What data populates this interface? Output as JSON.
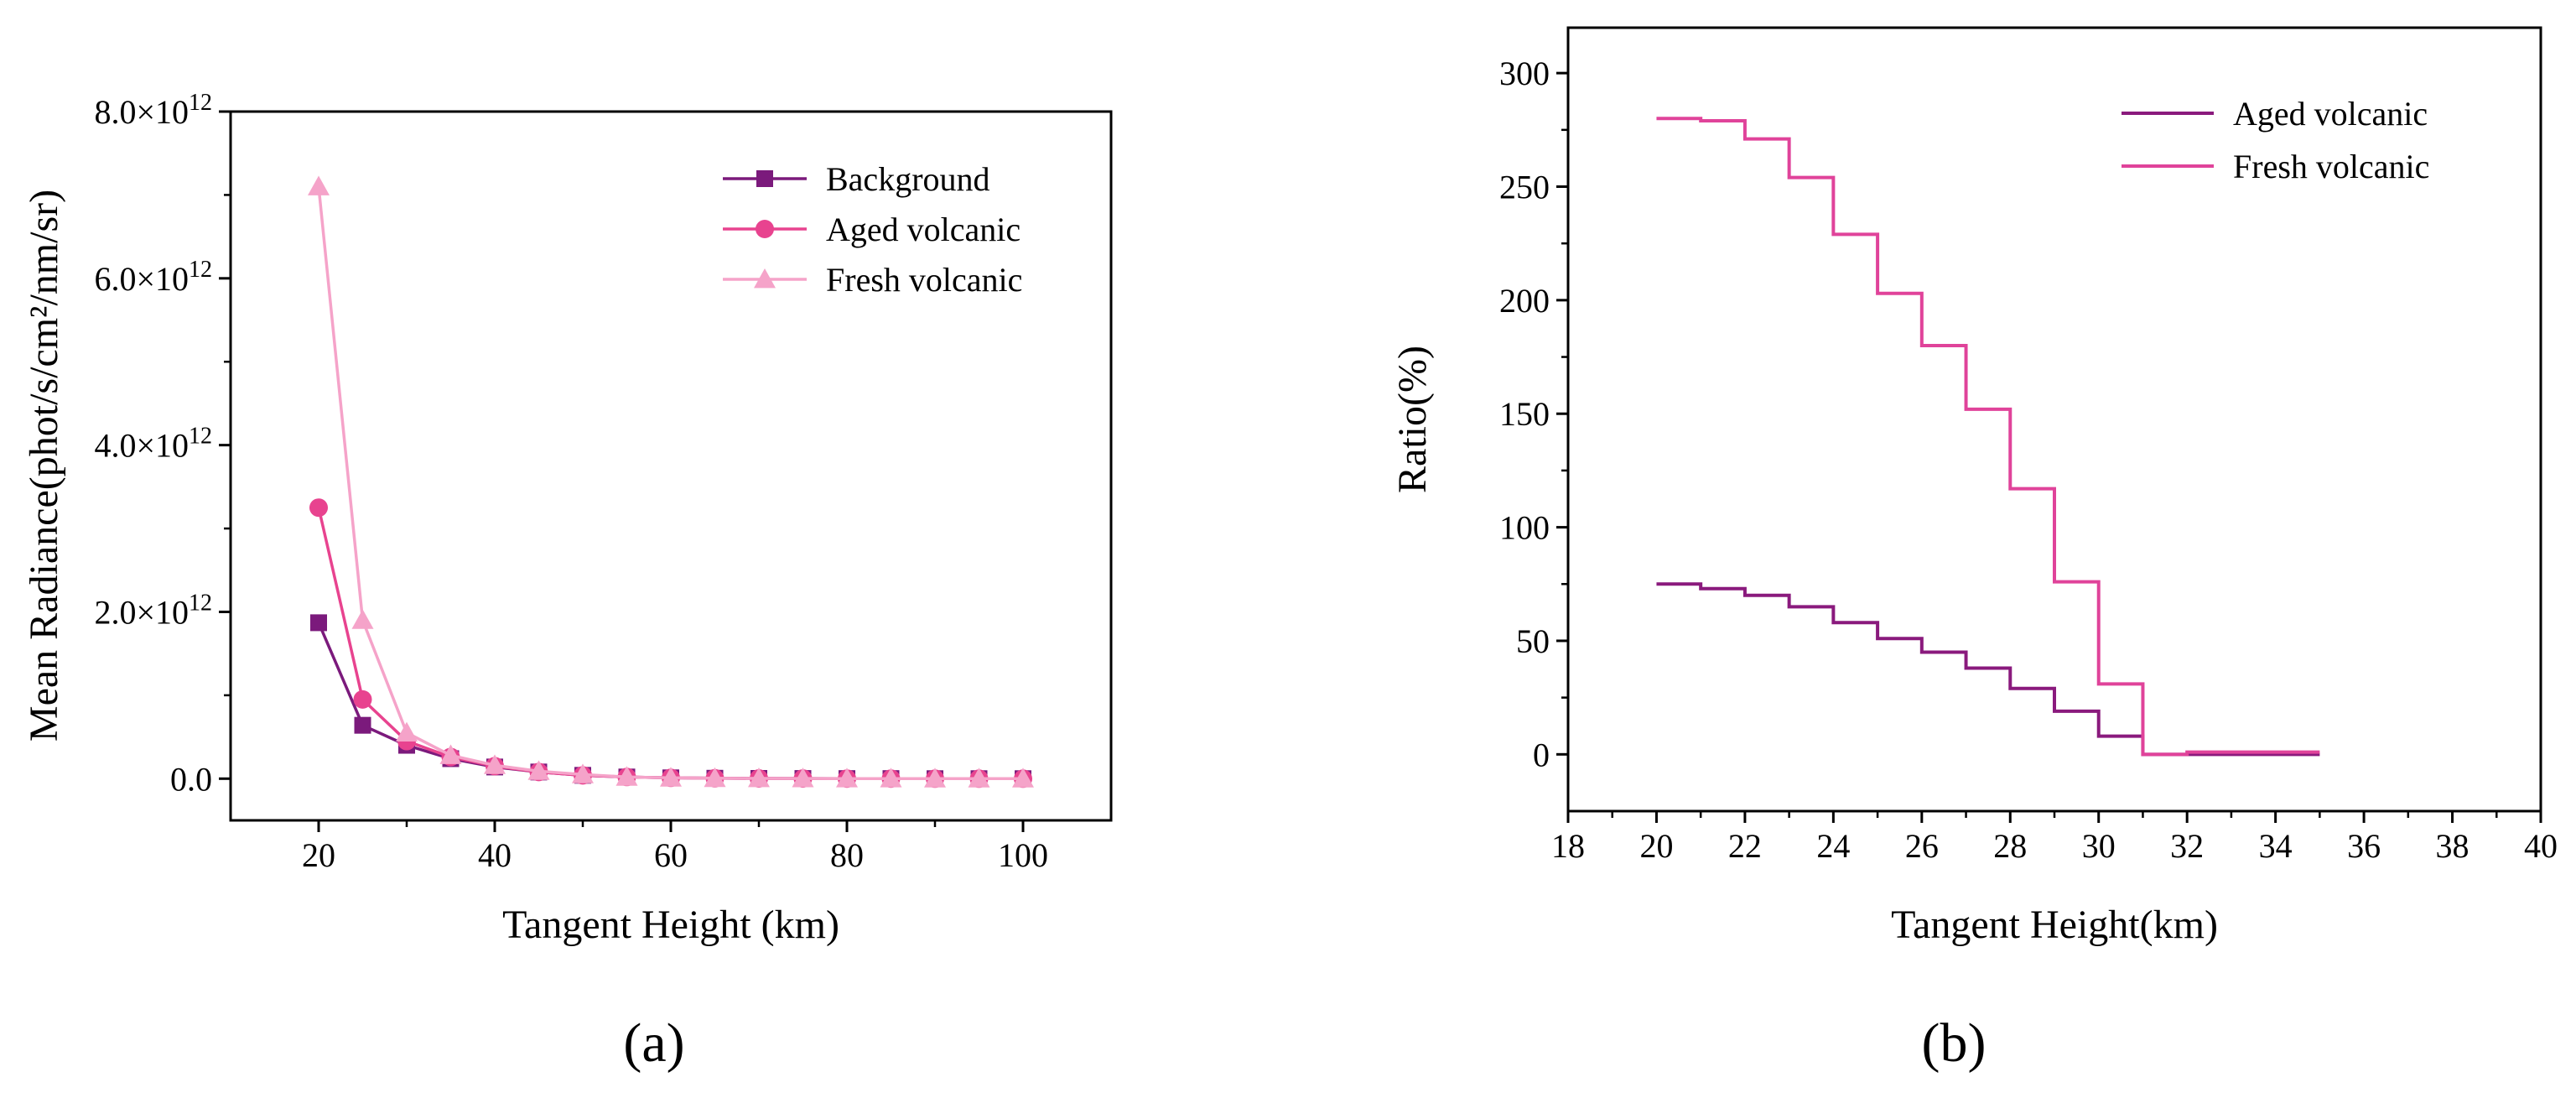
{
  "colors": {
    "background": "#7b1a7c",
    "aged": "#e8438f",
    "fresh": "#f5a3c9",
    "aged_b": "#8a1a7d",
    "fresh_b": "#e0439a"
  },
  "panel_labels": {
    "a": "(a)",
    "b": "(b)"
  },
  "chart_data": [
    {
      "id": "a",
      "type": "line",
      "xlabel": "Tangent Height (km)",
      "ylabel": "Mean Radiance(phot/s/cm²/nm/sr)",
      "xlim": [
        10,
        110
      ],
      "ylim": [
        -500000000000.0,
        8000000000000.0
      ],
      "xticks": [
        20,
        40,
        60,
        80,
        100
      ],
      "xtick_labels": [
        "20",
        "40",
        "60",
        "80",
        "100"
      ],
      "yticks": [
        0,
        2000000000000.0,
        4000000000000.0,
        6000000000000.0,
        8000000000000.0
      ],
      "ytick_labels": [
        {
          "mant": "0.0",
          "exp": ""
        },
        {
          "mant": "2.0×10",
          "exp": "12"
        },
        {
          "mant": "4.0×10",
          "exp": "12"
        },
        {
          "mant": "6.0×10",
          "exp": "12"
        },
        {
          "mant": "8.0×10",
          "exp": "12"
        }
      ],
      "x": [
        20,
        25,
        30,
        35,
        40,
        45,
        50,
        55,
        60,
        65,
        70,
        75,
        80,
        85,
        90,
        95,
        100
      ],
      "series": [
        {
          "name": "Background",
          "marker": "square",
          "color_key": "background",
          "values": [
            1870000000000.0,
            640000000000.0,
            400000000000.0,
            240000000000.0,
            140000000000.0,
            80000000000.0,
            40000000000.0,
            20000000000.0,
            10000000000.0,
            5000000000.0,
            3000000000.0,
            2000000000.0,
            1000000000.0,
            1000000000.0,
            0,
            0,
            0
          ]
        },
        {
          "name": "Aged volcanic",
          "marker": "circle",
          "color_key": "aged",
          "values": [
            3250000000000.0,
            950000000000.0,
            450000000000.0,
            260000000000.0,
            150000000000.0,
            80000000000.0,
            40000000000.0,
            20000000000.0,
            10000000000.0,
            5000000000.0,
            3000000000.0,
            2000000000.0,
            1000000000.0,
            1000000000.0,
            0,
            0,
            0
          ]
        },
        {
          "name": "Fresh volcanic",
          "marker": "triangle",
          "color_key": "fresh",
          "values": [
            7100000000000.0,
            1900000000000.0,
            550000000000.0,
            280000000000.0,
            160000000000.0,
            90000000000.0,
            50000000000.0,
            20000000000.0,
            10000000000.0,
            5000000000.0,
            3000000000.0,
            2000000000.0,
            1000000000.0,
            1000000000.0,
            0,
            0,
            0
          ]
        }
      ],
      "legend_position": "top-right"
    },
    {
      "id": "b",
      "type": "line",
      "step": true,
      "xlabel": "Tangent Height(km)",
      "ylabel": "Ratio(%)",
      "xlim": [
        18,
        40
      ],
      "ylim": [
        -25,
        320
      ],
      "xticks": [
        18,
        20,
        22,
        24,
        26,
        28,
        30,
        32,
        34,
        36,
        38,
        40
      ],
      "xtick_labels": [
        "18",
        "20",
        "22",
        "24",
        "26",
        "28",
        "30",
        "32",
        "34",
        "36",
        "38",
        "40"
      ],
      "yticks": [
        0,
        50,
        100,
        150,
        200,
        250,
        300
      ],
      "ytick_labels": [
        "0",
        "50",
        "100",
        "150",
        "200",
        "250",
        "300"
      ],
      "x": [
        20,
        21,
        22,
        23,
        24,
        25,
        26,
        27,
        28,
        29,
        30,
        31,
        32,
        33,
        34,
        35
      ],
      "series": [
        {
          "name": "Aged volcanic",
          "color_key": "aged_b",
          "values": [
            75,
            73,
            70,
            65,
            58,
            51,
            45,
            38,
            29,
            19,
            8,
            0,
            0,
            0,
            0,
            0
          ]
        },
        {
          "name": "Fresh volcanic",
          "color_key": "fresh_b",
          "values": [
            280,
            279,
            271,
            254,
            229,
            203,
            180,
            152,
            117,
            76,
            31,
            0,
            1,
            1,
            1,
            1
          ]
        }
      ],
      "legend_position": "top-right"
    }
  ]
}
